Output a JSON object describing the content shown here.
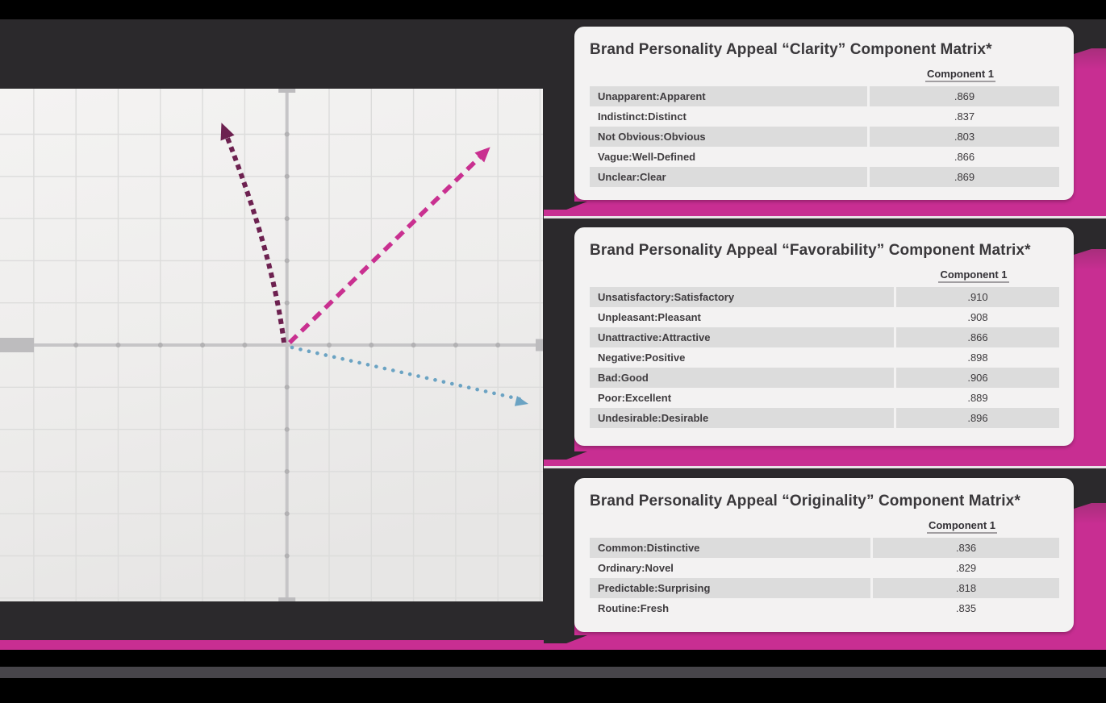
{
  "slide": {
    "colors": {
      "top_bottom_bar": "#000000",
      "background": "#2b292c",
      "accent_magenta": "#c82e92",
      "gray_stripe": "#47454a",
      "chart_panel": "#f1f0ef",
      "card_background": "#f3f2f2",
      "row_shade": "#dcdcdc",
      "divider_light": "#e9e3e7"
    }
  },
  "chart": {
    "grid_color": "#dcdcdb",
    "axis_color": "#c6c5c7",
    "cap_color": "#bdbcbe",
    "dot_color": "#b2b1b3",
    "arrows": [
      {
        "id": "plum-dashed-arrow",
        "color": "#6d2150",
        "style": "dashed",
        "direction": "up-left"
      },
      {
        "id": "magenta-dashed-arrow",
        "color": "#c93090",
        "style": "dashed",
        "direction": "up-right"
      },
      {
        "id": "blue-dotted-arrow",
        "color": "#6ba3c3",
        "style": "dotted",
        "direction": "down-right"
      }
    ]
  },
  "tables": [
    {
      "title": "Brand Personality Appeal “Clarity” Component Matrix*",
      "column_header": "Component 1",
      "rows": [
        {
          "label": "Unapparent:Apparent",
          "value": ".869"
        },
        {
          "label": "Indistinct:Distinct",
          "value": ".837"
        },
        {
          "label": "Not Obvious:Obvious",
          "value": ".803"
        },
        {
          "label": "Vague:Well-Defined",
          "value": ".866"
        },
        {
          "label": "Unclear:Clear",
          "value": ".869"
        }
      ]
    },
    {
      "title": "Brand Personality Appeal “Favorability” Component Matrix*",
      "column_header": "Component 1",
      "rows": [
        {
          "label": "Unsatisfactory:Satisfactory",
          "value": ".910"
        },
        {
          "label": "Unpleasant:Pleasant",
          "value": ".908"
        },
        {
          "label": "Unattractive:Attractive",
          "value": ".866"
        },
        {
          "label": "Negative:Positive",
          "value": ".898"
        },
        {
          "label": "Bad:Good",
          "value": ".906"
        },
        {
          "label": "Poor:Excellent",
          "value": ".889"
        },
        {
          "label": "Undesirable:Desirable",
          "value": ".896"
        }
      ]
    },
    {
      "title": "Brand Personality Appeal “Originality” Component Matrix*",
      "column_header": "Component 1",
      "rows": [
        {
          "label": "Common:Distinctive",
          "value": ".836"
        },
        {
          "label": "Ordinary:Novel",
          "value": ".829"
        },
        {
          "label": "Predictable:Surprising",
          "value": ".818"
        },
        {
          "label": "Routine:Fresh",
          "value": ".835"
        }
      ]
    }
  ]
}
